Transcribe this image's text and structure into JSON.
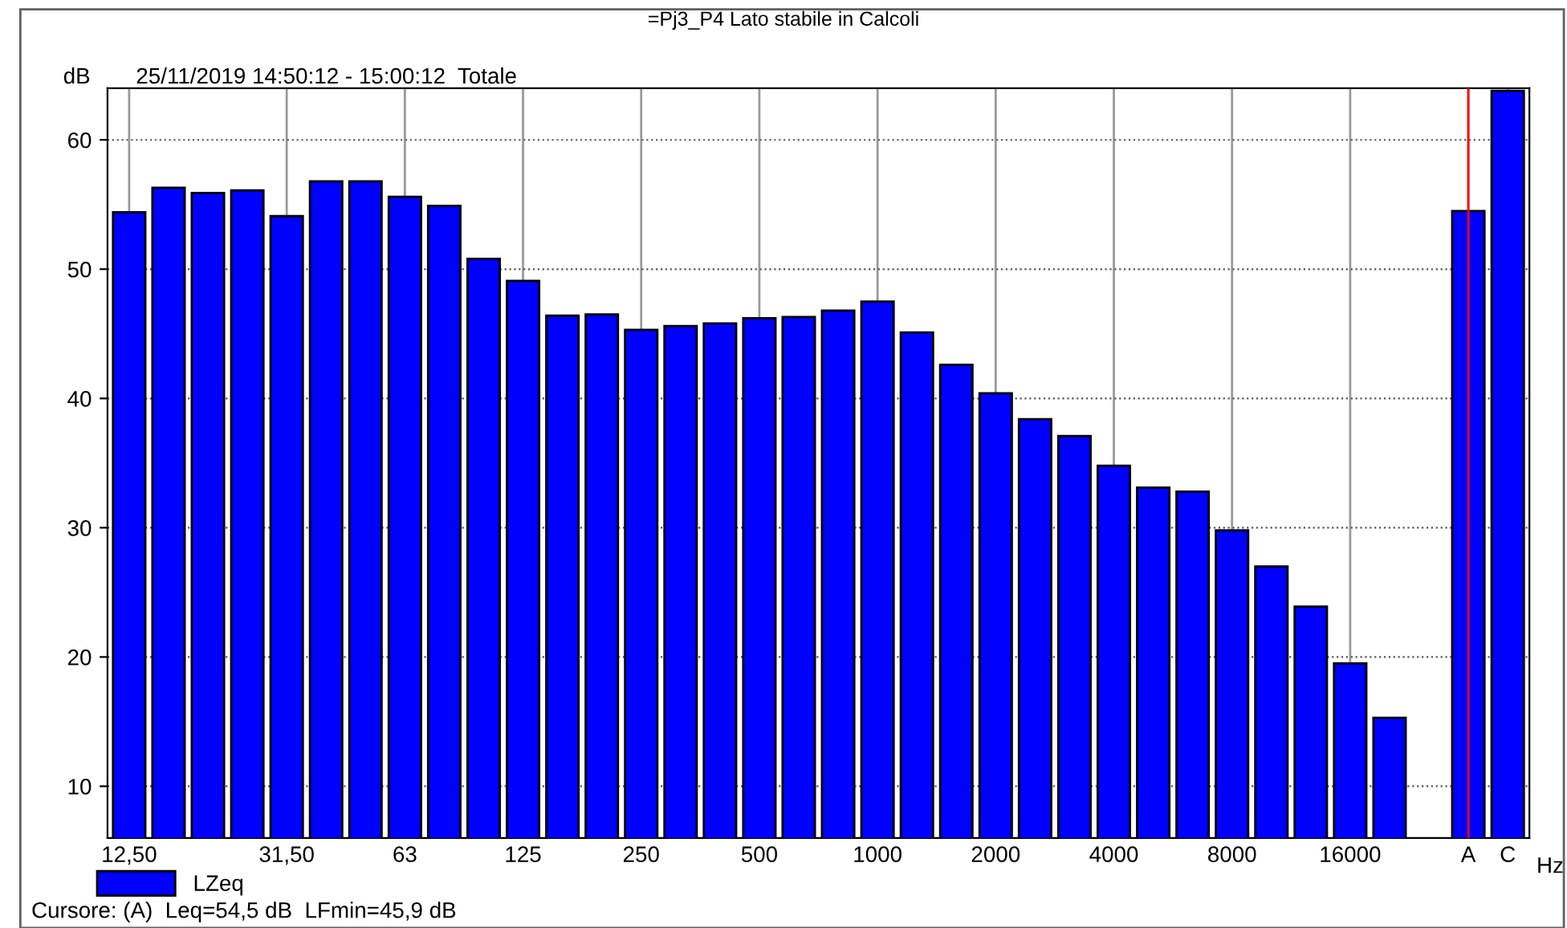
{
  "chart_data": {
    "type": "bar",
    "title": "=Pj3_P4 Lato stabile in Calcoli",
    "subtitle": "25/11/2019 14:50:12 - 15:00:12  Totale",
    "ylabel": "dB",
    "xlabel": "Hz",
    "categories": [
      "12,50",
      null,
      null,
      null,
      "31,50",
      null,
      null,
      "63",
      null,
      null,
      "125",
      null,
      null,
      "250",
      null,
      null,
      "500",
      null,
      null,
      "1000",
      null,
      null,
      "2000",
      null,
      null,
      "4000",
      null,
      null,
      "8000",
      null,
      null,
      "16000",
      null,
      null,
      "A",
      "C"
    ],
    "series": [
      {
        "name": "LZeq",
        "color": "#0000ff",
        "values": [
          54.4,
          56.3,
          55.9,
          56.1,
          54.1,
          56.8,
          56.8,
          55.6,
          54.9,
          50.8,
          49.1,
          46.4,
          46.5,
          45.3,
          45.6,
          45.8,
          46.2,
          46.3,
          46.8,
          47.5,
          45.1,
          42.6,
          40.4,
          38.4,
          37.1,
          34.8,
          33.1,
          32.8,
          29.8,
          27.0,
          23.9,
          19.5,
          15.3,
          null,
          54.5,
          63.8
        ]
      }
    ],
    "ylim": [
      6,
      64
    ],
    "yticks": [
      10,
      20,
      30,
      40,
      50,
      60
    ],
    "grid": true,
    "legend": "bottom left",
    "ref_lines": [
      {
        "axis": "x",
        "value": "A",
        "color": "#ff0000"
      }
    ],
    "annotations": [
      "Cursore: (A)  Leq=54,5 dB  LFmin=45,9 dB"
    ]
  }
}
